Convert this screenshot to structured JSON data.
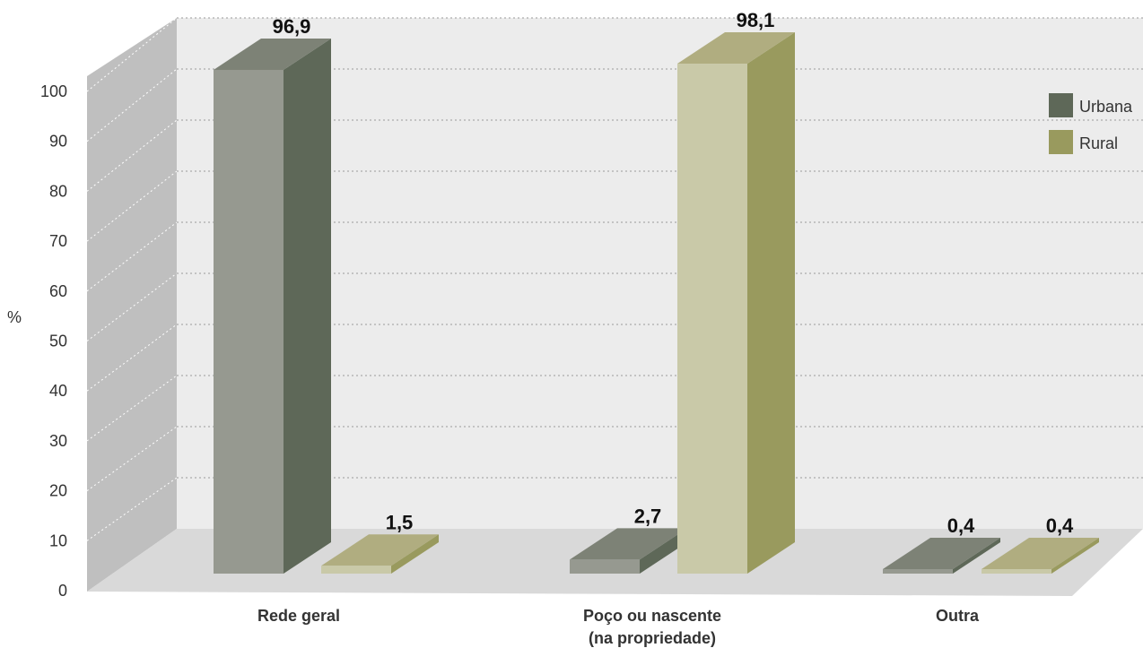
{
  "chart_data": {
    "type": "bar",
    "ylabel": "%",
    "ylim": [
      0,
      100
    ],
    "yticks": [
      "0",
      "10",
      "20",
      "30",
      "40",
      "50",
      "60",
      "70",
      "80",
      "90",
      "100"
    ],
    "categories": [
      "Rede geral",
      "Poço ou nascente",
      "Outra"
    ],
    "category_second_lines": [
      "",
      "(na propriedade)",
      ""
    ],
    "series": [
      {
        "name": "Urbana",
        "values": [
          96.9,
          2.7,
          0.4
        ],
        "labels": [
          "96,9",
          "2,7",
          "0,4"
        ],
        "color": "#5e6858"
      },
      {
        "name": "Rural",
        "values": [
          1.5,
          98.1,
          0.4
        ],
        "labels": [
          "1,5",
          "98,1",
          "0,4"
        ],
        "color": "#999a5e"
      }
    ],
    "legend": "top-right",
    "grid": true,
    "style": "3d"
  },
  "colors": {
    "urbana_front": "#969990",
    "urbana_side": "#5e6858",
    "urbana_top": "#7d8276",
    "rural_front": "#c9c9a8",
    "rural_side": "#999a5e",
    "rural_top": "#b0ad80",
    "wall_back": "#ececec",
    "wall_side": "#bfbfbf",
    "floor": "#d9d9d9"
  }
}
